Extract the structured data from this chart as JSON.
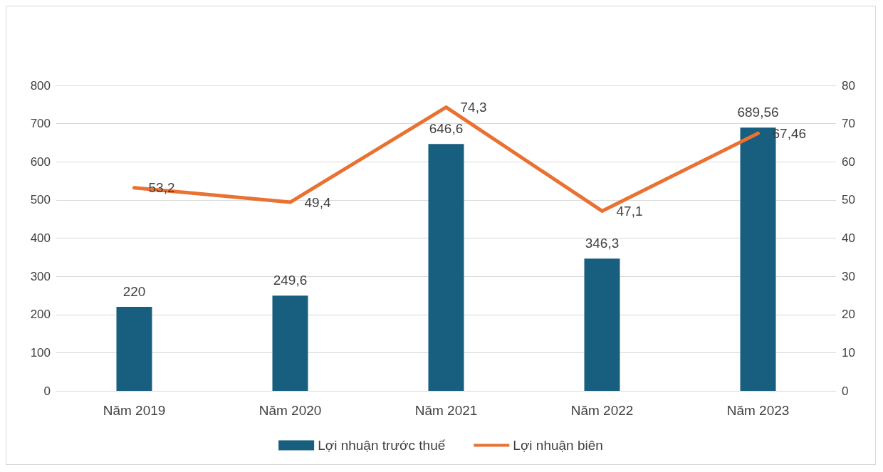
{
  "chart_data": {
    "type": "bar",
    "categories": [
      "Năm 2019",
      "Năm 2020",
      "Năm 2021",
      "Năm 2022",
      "Năm 2023"
    ],
    "series": [
      {
        "name": "Lợi nhuận trước thuế",
        "color": "#175e7f",
        "values": [
          220,
          249.6,
          646.6,
          346.3,
          689.56
        ],
        "value_labels": [
          "220",
          "249,6",
          "646,6",
          "346,3",
          "689,56"
        ]
      },
      {
        "name": "Lợi nhuận biên",
        "type": "line",
        "axis": "y2",
        "color": "#e97132",
        "values": [
          53.2,
          49.4,
          74.3,
          47.1,
          67.46
        ],
        "value_labels": [
          "53,2",
          "49,4",
          "74,3",
          "47,1",
          "67,46"
        ]
      }
    ],
    "ylim": [
      0,
      800
    ],
    "yticks": [
      0,
      100,
      200,
      300,
      400,
      500,
      600,
      700,
      800
    ],
    "y2lim": [
      0,
      80
    ],
    "y2ticks": [
      0,
      10,
      20,
      30,
      40,
      50,
      60,
      70,
      80
    ],
    "grid": "y",
    "legend": "bottom",
    "marker": "none",
    "line_style": "solid"
  }
}
